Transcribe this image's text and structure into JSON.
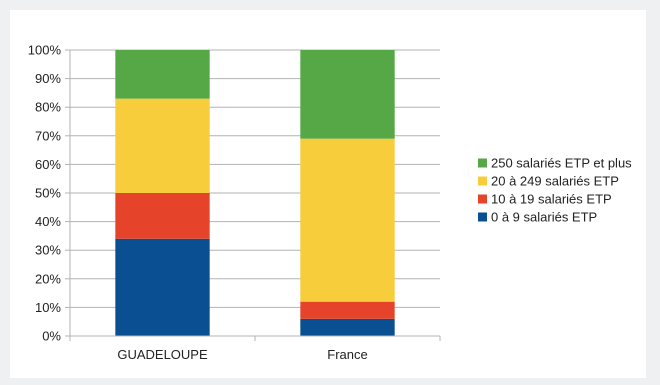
{
  "chart_data": {
    "type": "bar",
    "stacked": true,
    "normalized": true,
    "categories": [
      "GUADELOUPE",
      "France"
    ],
    "series": [
      {
        "name": "0 à 9 salariés ETP",
        "color": "#0a4f92",
        "values": [
          34,
          6
        ]
      },
      {
        "name": "10 à 19 salariés ETP",
        "color": "#e6432b",
        "values": [
          16,
          6
        ]
      },
      {
        "name": "20 à 249 salariés ETP",
        "color": "#f7cd3b",
        "values": [
          33,
          57
        ]
      },
      {
        "name": "250 salariés ETP et plus",
        "color": "#56a846",
        "values": [
          17,
          31
        ]
      }
    ],
    "yticks": [
      "0%",
      "10%",
      "20%",
      "30%",
      "40%",
      "50%",
      "60%",
      "70%",
      "80%",
      "90%",
      "100%"
    ],
    "ylim": [
      0,
      100
    ],
    "grid": true,
    "legend_position": "right"
  }
}
